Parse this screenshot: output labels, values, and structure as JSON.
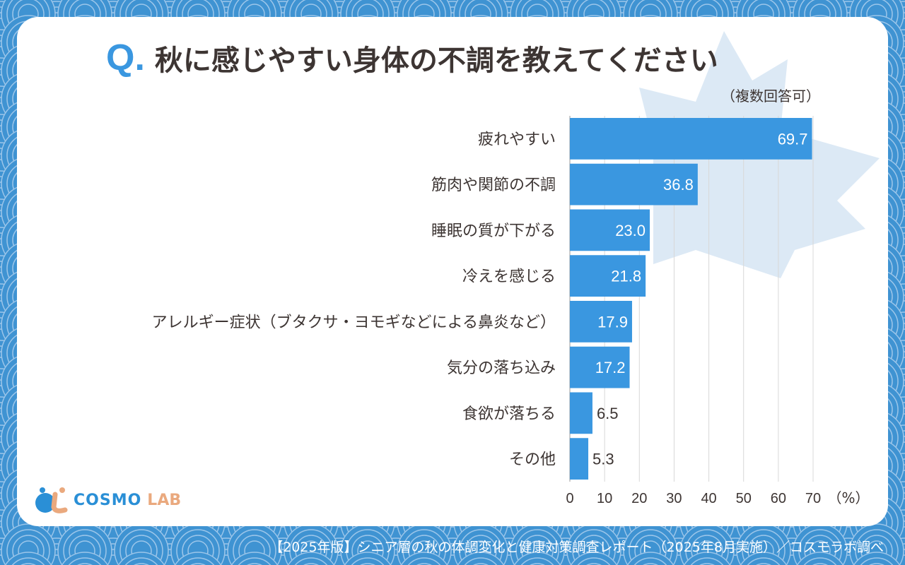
{
  "title": {
    "q": "Q.",
    "text": "秋に感じやすい身体の不調を教えてください",
    "note": "（複数回答可）"
  },
  "footer": "【2025年版】シニア層の秋の体調変化と健康対策調査レポート（2025年8月実施）／コスモラボ調べ",
  "logo": {
    "text1": "COSMO",
    "text2": "LAB"
  },
  "colors": {
    "bar": "#3a97e0",
    "background": "#3f93d2",
    "leaf": "#dce9f5"
  },
  "chart_data": {
    "type": "bar",
    "orientation": "horizontal",
    "categories": [
      "疲れやすい",
      "筋肉や関節の不調",
      "睡眠の質が下がる",
      "冷えを感じる",
      "アレルギー症状（ブタクサ・ヨモギなどによる鼻炎など）",
      "気分の落ち込み",
      "食欲が落ちる",
      "その他"
    ],
    "values": [
      69.7,
      36.8,
      23.0,
      21.8,
      17.9,
      17.2,
      6.5,
      5.3
    ],
    "labels": [
      "69.7",
      "36.8",
      "23.0",
      "21.8",
      "17.9",
      "17.2",
      "6.5",
      "5.3"
    ],
    "xticks": [
      "0",
      "10",
      "20",
      "30",
      "40",
      "50",
      "60",
      "70"
    ],
    "xunit": "（%）",
    "xlim": [
      0,
      70
    ],
    "grid": true
  }
}
